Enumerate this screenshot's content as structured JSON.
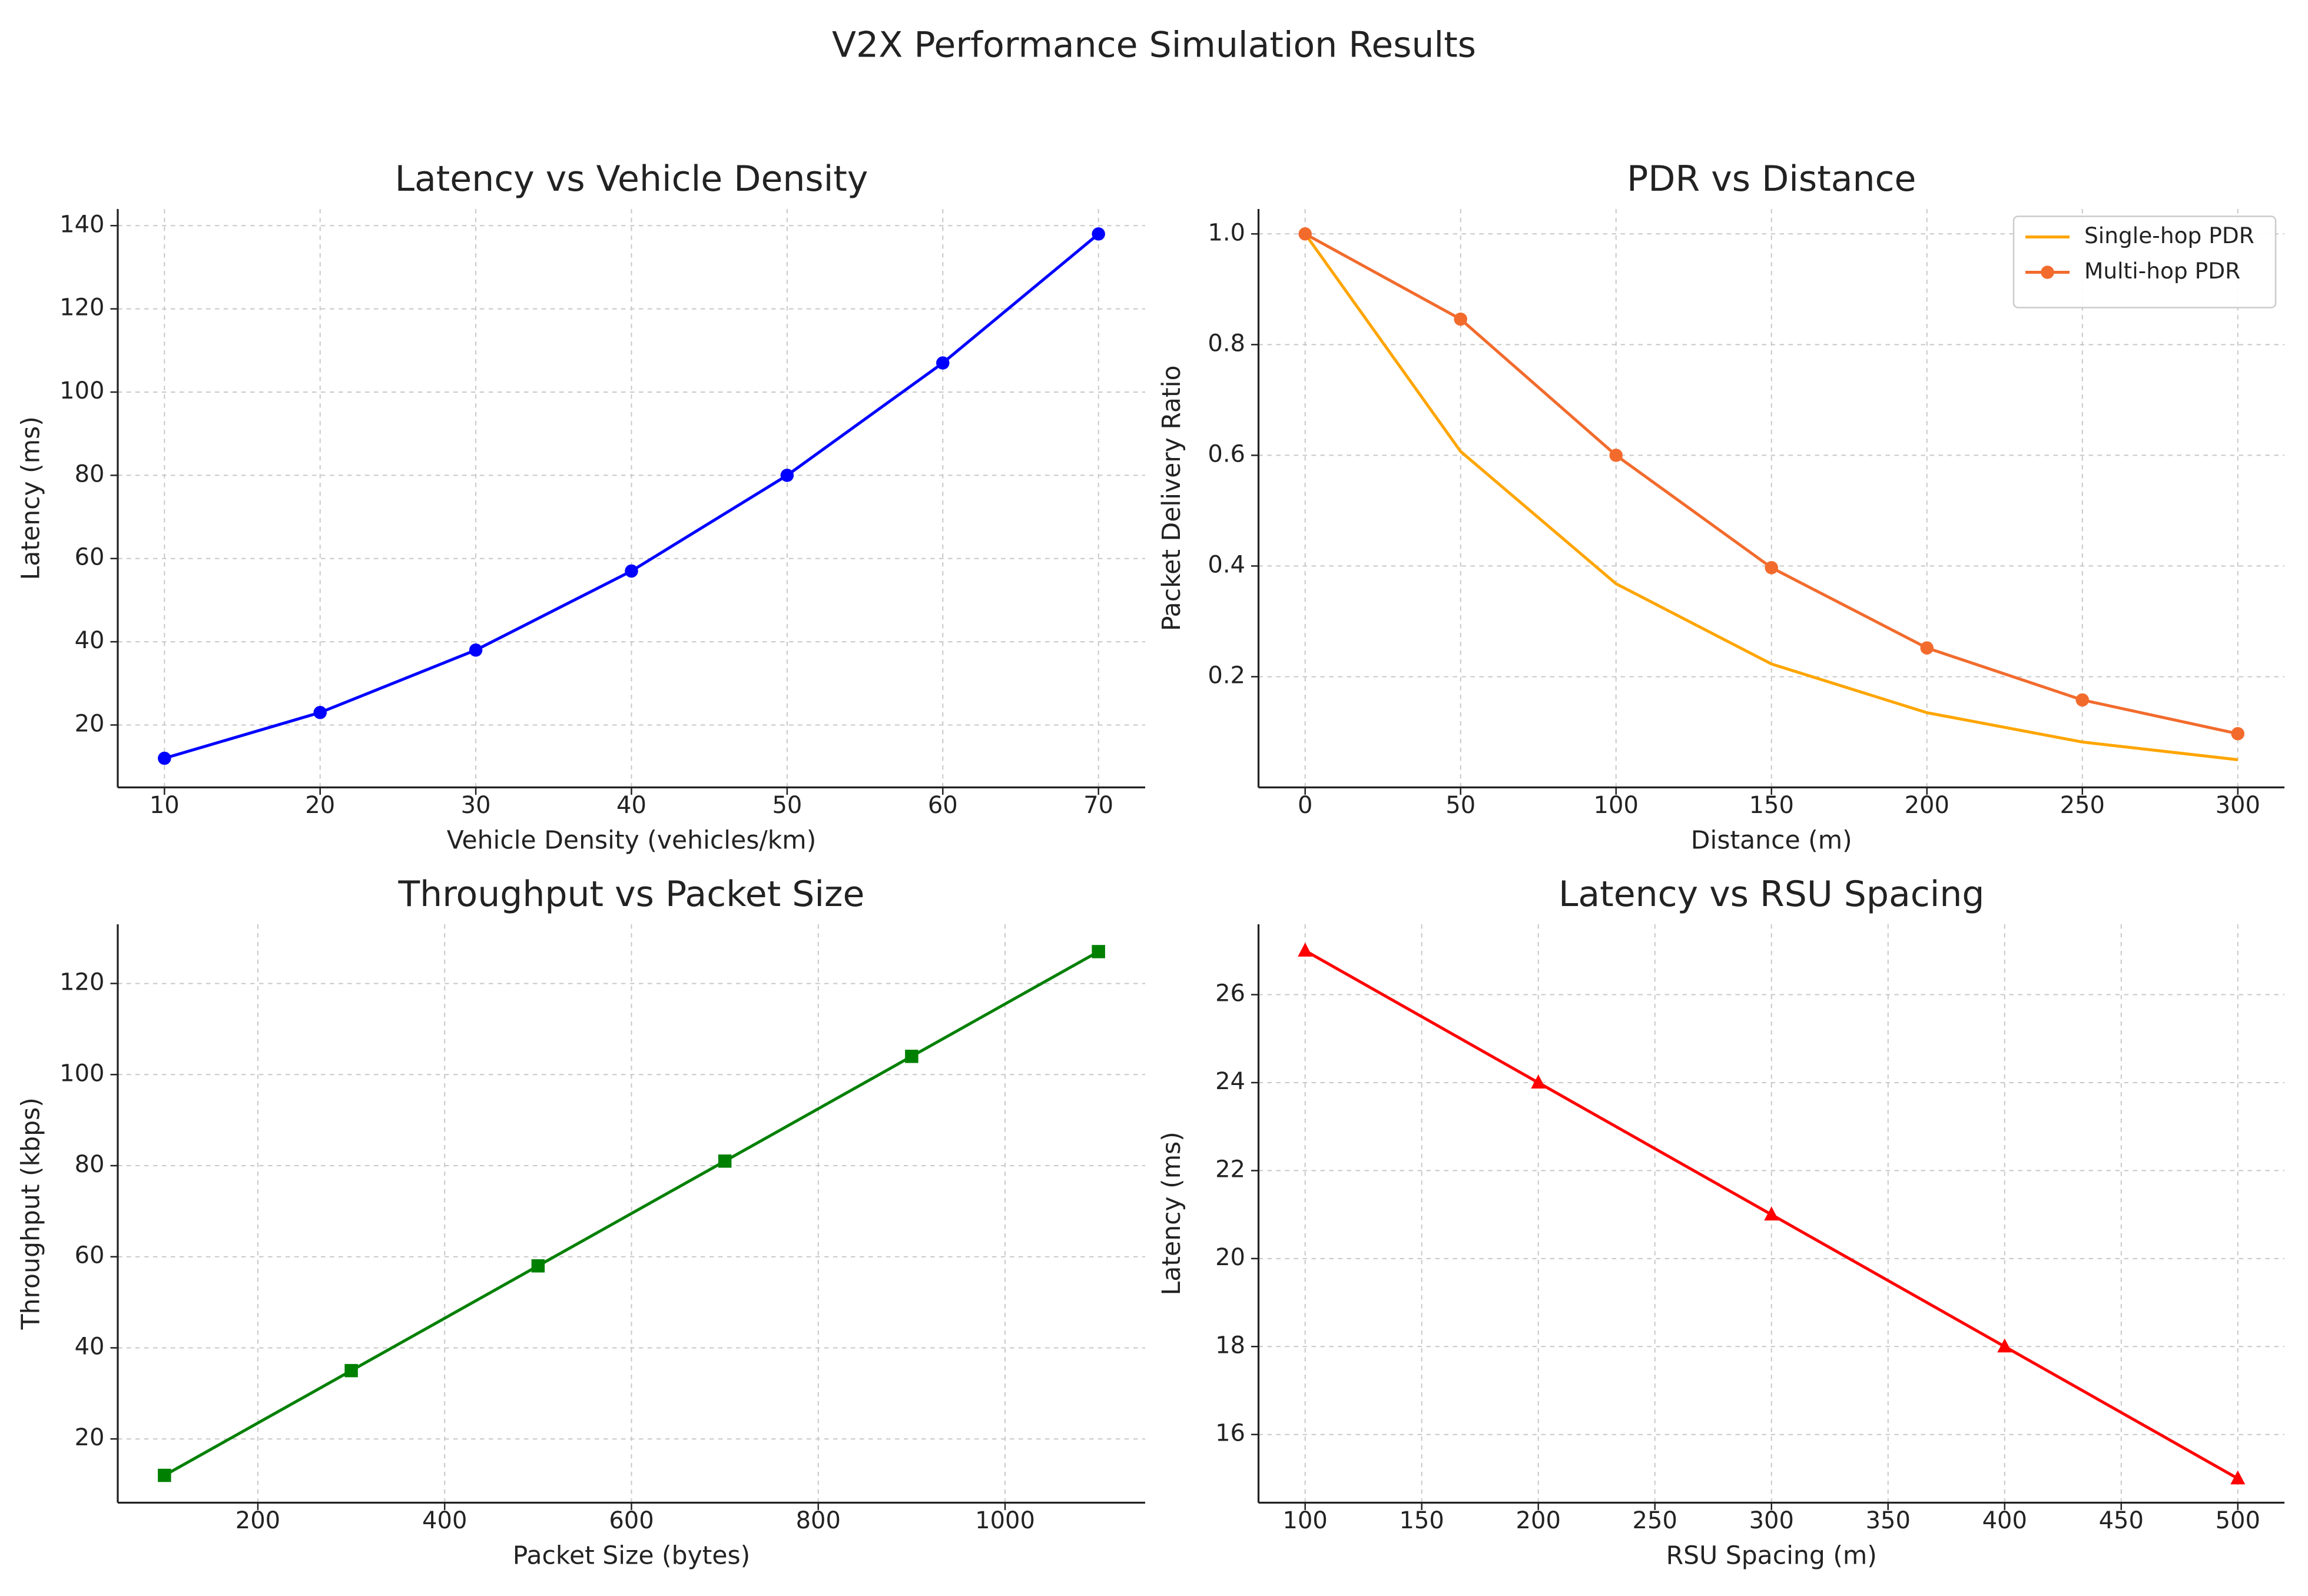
{
  "title": "V2X Performance Simulation Results",
  "chart_data": [
    {
      "type": "line",
      "title": "Latency vs Vehicle Density",
      "xlabel": "Vehicle Density (vehicles/km)",
      "ylabel": "Latency (ms)",
      "x": [
        10,
        20,
        30,
        40,
        50,
        60,
        70
      ],
      "series": [
        {
          "color": "#0000ff",
          "marker": "circle",
          "values": [
            12,
            23,
            38,
            57,
            80,
            107,
            138
          ]
        }
      ],
      "xlim": [
        7,
        73
      ],
      "ylim": [
        5,
        144
      ],
      "xticks": [
        10,
        20,
        30,
        40,
        50,
        60,
        70
      ],
      "yticks": [
        20,
        40,
        60,
        80,
        100,
        120,
        140
      ],
      "grid": true
    },
    {
      "type": "line",
      "title": "PDR vs Distance",
      "xlabel": "Distance (m)",
      "ylabel": "Packet Delivery Ratio",
      "x": [
        0,
        50,
        100,
        150,
        200,
        250,
        300
      ],
      "series": [
        {
          "name": "Single-hop PDR",
          "color": "#ffa500",
          "marker": "none",
          "values": [
            1.0,
            0.607,
            0.368,
            0.223,
            0.135,
            0.082,
            0.05
          ]
        },
        {
          "name": "Multi-hop PDR",
          "color": "#f26b2d",
          "marker": "circle",
          "values": [
            1.0,
            0.846,
            0.6,
            0.397,
            0.252,
            0.158,
            0.097
          ]
        }
      ],
      "xlim": [
        -15,
        315
      ],
      "ylim": [
        0,
        1.045
      ],
      "xticks": [
        0,
        50,
        100,
        150,
        200,
        250,
        300
      ],
      "yticks": [
        0.2,
        0.4,
        0.6,
        0.8,
        {
          "value": 1,
          "label": "1.0"
        }
      ],
      "grid": true,
      "legend": "upper right"
    },
    {
      "type": "line",
      "title": "Throughput vs Packet Size",
      "xlabel": "Packet Size (bytes)",
      "ylabel": "Throughput (kbps)",
      "x": [
        100,
        300,
        500,
        700,
        900,
        1100
      ],
      "series": [
        {
          "color": "#008000",
          "marker": "square",
          "values": [
            12,
            35,
            58,
            81,
            104,
            127
          ]
        }
      ],
      "xlim": [
        50,
        1150
      ],
      "ylim": [
        6,
        133
      ],
      "xticks": [
        200,
        400,
        600,
        800,
        1000
      ],
      "yticks": [
        20,
        40,
        60,
        80,
        100,
        120
      ],
      "grid": true
    },
    {
      "type": "line",
      "title": "Latency vs RSU Spacing",
      "xlabel": "RSU Spacing (m)",
      "ylabel": "Latency (ms)",
      "x": [
        100,
        200,
        300,
        400,
        500
      ],
      "series": [
        {
          "color": "#ff0000",
          "marker": "triangle",
          "values": [
            27,
            24,
            21,
            18,
            15
          ]
        }
      ],
      "xlim": [
        80,
        520
      ],
      "ylim": [
        14.45,
        27.6
      ],
      "xticks": [
        100,
        150,
        200,
        250,
        300,
        350,
        400,
        450,
        500
      ],
      "yticks": [
        16,
        18,
        20,
        22,
        24,
        26
      ],
      "grid": true
    }
  ]
}
